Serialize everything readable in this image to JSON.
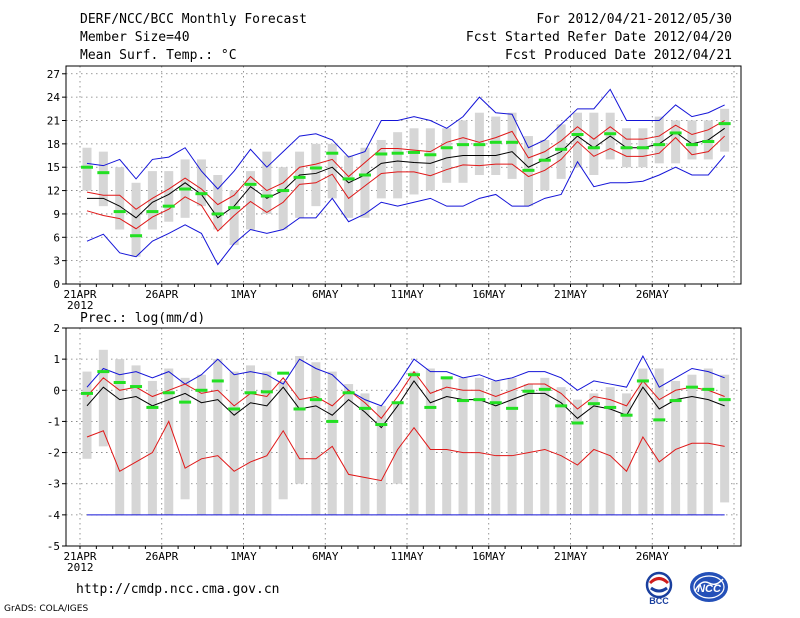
{
  "header": {
    "title": "DERF/NCC/BCC Monthly Forecast",
    "member_size": "Member Size=40",
    "variable": "Mean Surf. Temp.: °C",
    "period": "For 2012/04/21-2012/05/30",
    "fcst_started": "Fcst Started Refer Date 2012/04/20",
    "fcst_produced": "Fcst Produced Date 2012/04/21"
  },
  "footer": {
    "url": "http://cmdp.ncc.cma.gov.cn",
    "grads": "GrADS: COLA/IGES",
    "logo_left_text": "BCC",
    "logo_right_text": "NCC"
  },
  "colors": {
    "box": "#d6d6d6",
    "obs": "#22e022",
    "mean": "#000000",
    "spread": "#e01818",
    "extreme": "#1414d8",
    "grid": "#7a7a7a"
  },
  "chart_data": [
    {
      "type": "box-ensemble",
      "title": "Mean Surf. Temp.: °C",
      "ylim": [
        0,
        28
      ],
      "yticks": [
        0,
        3,
        6,
        9,
        12,
        15,
        18,
        21,
        24,
        27
      ],
      "xtick_labels": [
        {
          "day": 0,
          "label": "21APR",
          "sub": "2012"
        },
        {
          "day": 5,
          "label": "26APR"
        },
        {
          "day": 10,
          "label": "1MAY"
        },
        {
          "day": 15,
          "label": "6MAY"
        },
        {
          "day": 20,
          "label": "11MAY"
        },
        {
          "day": 25,
          "label": "16MAY"
        },
        {
          "day": 30,
          "label": "21MAY"
        },
        {
          "day": 35,
          "label": "26MAY"
        }
      ],
      "series": {
        "box_low": [
          12,
          10,
          7,
          3.5,
          7,
          8,
          8.5,
          10,
          7,
          5,
          7,
          9,
          7,
          8.5,
          10,
          11,
          8.5,
          8.5,
          11,
          11,
          11.5,
          12,
          13,
          13,
          14,
          14,
          13.5,
          10,
          12,
          13.5,
          15,
          14,
          16,
          15,
          15,
          15.5,
          15.5,
          16,
          16,
          17
        ],
        "box_high": [
          17.5,
          17,
          15,
          13,
          14.5,
          14.5,
          16,
          16,
          14,
          12,
          14.5,
          17,
          15,
          17,
          18,
          18,
          16.5,
          17.5,
          18.5,
          19.5,
          20,
          20,
          20,
          21,
          22,
          21.5,
          22,
          19,
          18.5,
          20.5,
          22,
          22,
          22,
          20,
          20,
          21.5,
          21,
          21,
          21,
          22.5
        ],
        "obs": [
          15,
          14.3,
          9.3,
          6.2,
          9.3,
          10,
          12.2,
          11.6,
          9,
          9.8,
          12.8,
          11.3,
          12,
          13.7,
          14.9,
          16.8,
          13.5,
          14,
          16.7,
          16.8,
          16.9,
          16.6,
          17.5,
          17.9,
          17.9,
          18.2,
          18.2,
          14.6,
          15.9,
          17.3,
          19.2,
          17.5,
          19.3,
          17.5,
          17.5,
          17.9,
          19.4,
          17.9,
          18.3,
          20.6
        ],
        "mean": [
          11,
          11,
          10,
          8.5,
          10.5,
          11.5,
          13,
          11.5,
          8.5,
          10,
          12.5,
          11,
          12,
          14,
          14.2,
          15,
          13,
          14,
          15.5,
          15.8,
          15.6,
          15.5,
          16.2,
          16.5,
          16.5,
          16.5,
          17,
          15,
          16,
          17,
          19,
          17.5,
          19,
          17.5,
          17.5,
          18,
          19.5,
          18,
          18.5,
          20
        ],
        "spread_hi": [
          11.8,
          11.4,
          11.4,
          9.6,
          11,
          12.2,
          13.6,
          12.2,
          10.2,
          11.4,
          13.8,
          12,
          13,
          15,
          15.4,
          16,
          13.8,
          15.6,
          17.4,
          17.4,
          17.2,
          17,
          18.2,
          18.8,
          18.2,
          18.8,
          19.6,
          16.2,
          17,
          18.4,
          20.2,
          18.6,
          20.2,
          18.6,
          18.6,
          19,
          20.4,
          19.2,
          19.8,
          21
        ],
        "spread_lo": [
          9.4,
          8.8,
          8.4,
          7.1,
          8.6,
          9.6,
          11.2,
          10.1,
          6.8,
          8.8,
          10.6,
          9.2,
          10.5,
          12.8,
          13,
          14.1,
          11,
          12.6,
          14.2,
          14.4,
          14.4,
          13.9,
          14.7,
          15.3,
          15.2,
          15.4,
          15.4,
          13.8,
          14.6,
          16,
          18.3,
          16.4,
          17.4,
          16.4,
          16.4,
          16.8,
          18.8,
          16.6,
          17,
          19
        ],
        "max": [
          15.5,
          15.2,
          16,
          13.5,
          16,
          16.3,
          17.5,
          14.5,
          12.2,
          14.5,
          17.3,
          15,
          17,
          19,
          19.3,
          18.5,
          16.3,
          17,
          21,
          21,
          21.5,
          21,
          20,
          21.5,
          24,
          22,
          21.8,
          17.5,
          18.5,
          20.5,
          22.5,
          22.5,
          25,
          21,
          21,
          21,
          23,
          21.5,
          22,
          23
        ],
        "min": [
          5.5,
          6.4,
          4,
          3.5,
          5.5,
          6.5,
          7.6,
          6.5,
          2.5,
          5.2,
          7,
          6.5,
          7,
          8.5,
          8.5,
          11,
          8,
          9,
          10.5,
          10,
          10.5,
          11,
          10,
          10,
          11,
          11.5,
          10,
          10,
          11,
          11.5,
          15.7,
          12.5,
          13,
          13,
          13.2,
          14,
          15,
          14,
          14,
          16.5
        ]
      }
    },
    {
      "type": "box-ensemble",
      "title": "Prec.: log(mm/d)",
      "ylim": [
        -5,
        2
      ],
      "yticks": [
        -5,
        -4,
        -3,
        -2,
        -1,
        0,
        1,
        2
      ],
      "baseline": -4,
      "xtick_labels": [
        {
          "day": 0,
          "label": "21APR",
          "sub": "2012"
        },
        {
          "day": 5,
          "label": "26APR"
        },
        {
          "day": 10,
          "label": "1MAY"
        },
        {
          "day": 15,
          "label": "6MAY"
        },
        {
          "day": 20,
          "label": "11MAY"
        },
        {
          "day": 25,
          "label": "16MAY"
        },
        {
          "day": 30,
          "label": "21MAY"
        },
        {
          "day": 35,
          "label": "26MAY"
        }
      ],
      "series": {
        "box_low": [
          -2.2,
          -1.8,
          -4,
          -4,
          -4,
          -4,
          -3.5,
          -4,
          -4,
          -4,
          -4,
          -4,
          -3.5,
          -3,
          -4,
          -4,
          -4,
          -4,
          -4,
          -3,
          -4,
          -4,
          -4,
          -4,
          -4,
          -4,
          -4,
          -4,
          -4,
          -4,
          -4,
          -4,
          -4,
          -4,
          -4,
          -4,
          -4,
          -4,
          -4,
          -3.6
        ],
        "box_high": [
          0.6,
          1.3,
          1,
          0.8,
          0.3,
          0.7,
          0.4,
          0.5,
          1,
          0.6,
          0.8,
          0.6,
          0.3,
          1.1,
          0.9,
          0.6,
          0.2,
          -0.1,
          -0.5,
          -0.4,
          0.6,
          0.7,
          0.4,
          0.4,
          0.4,
          0.3,
          0.4,
          0.2,
          0.4,
          0.1,
          -0.3,
          -0.1,
          0.1,
          -0.1,
          0.7,
          0.7,
          0.3,
          0.5,
          0.7,
          0.5
        ],
        "obs": [
          -0.1,
          0.6,
          0.25,
          0.12,
          -0.55,
          -0.08,
          -0.38,
          0,
          0.3,
          -0.6,
          -0.08,
          -0.05,
          0.55,
          -0.6,
          -0.3,
          -1,
          -0.08,
          -0.58,
          -1.1,
          -0.4,
          0.5,
          -0.55,
          0.4,
          -0.33,
          -0.3,
          -0.4,
          -0.58,
          -0.03,
          0.03,
          -0.5,
          -1.05,
          -0.43,
          -0.55,
          -0.8,
          0.3,
          -0.95,
          -0.33,
          0.1,
          0.03,
          -0.3
        ],
        "mean": [
          -0.5,
          0.1,
          -0.3,
          -0.2,
          -0.5,
          -0.3,
          -0.1,
          -0.4,
          -0.3,
          -0.8,
          -0.4,
          -0.5,
          0.1,
          -0.6,
          -0.5,
          -0.8,
          -0.3,
          -0.7,
          -1.2,
          -0.5,
          0.3,
          -0.4,
          -0.2,
          -0.3,
          -0.3,
          -0.5,
          -0.3,
          -0.1,
          -0.1,
          -0.4,
          -0.9,
          -0.5,
          -0.6,
          -0.8,
          0.1,
          -0.6,
          -0.3,
          -0.2,
          -0.3,
          -0.5
        ],
        "spread_hi": [
          -0.2,
          0.4,
          0,
          0.1,
          -0.2,
          0,
          0.2,
          -0.1,
          0,
          -0.5,
          -0.1,
          -0.2,
          0.4,
          -0.3,
          -0.2,
          -0.5,
          0,
          -0.4,
          -0.9,
          -0.2,
          0.6,
          -0.1,
          0.1,
          0,
          0,
          -0.2,
          0,
          0.2,
          0.2,
          -0.1,
          -0.6,
          -0.2,
          -0.3,
          -0.5,
          0.3,
          -0.3,
          0,
          0.1,
          0,
          -0.2
        ],
        "spread_lo": [
          -1.5,
          -1.3,
          -2.6,
          -2.3,
          -2,
          -1,
          -2.5,
          -2.2,
          -2.1,
          -2.6,
          -2.3,
          -2.1,
          -1.3,
          -2.2,
          -2.2,
          -1.8,
          -2.7,
          -2.8,
          -2.9,
          -1.9,
          -1.2,
          -1.9,
          -1.9,
          -2,
          -2,
          -2.1,
          -2.1,
          -2,
          -1.9,
          -2.1,
          -2.4,
          -1.9,
          -2.1,
          -2.6,
          -1.5,
          -2.3,
          -1.9,
          -1.7,
          -1.7,
          -1.8
        ],
        "max": [
          0.1,
          0.7,
          0.5,
          0.6,
          0.4,
          0.6,
          0.2,
          0.5,
          1,
          0.5,
          0.6,
          0.5,
          0.2,
          1,
          0.7,
          0.5,
          0,
          -0.3,
          -0.5,
          0.2,
          1,
          0.6,
          0.6,
          0.4,
          0.5,
          0.3,
          0.4,
          0.6,
          0.6,
          0.4,
          0,
          0.3,
          0.2,
          0.1,
          1.1,
          0.1,
          0.4,
          0.7,
          0.6,
          0.4
        ]
      }
    }
  ]
}
